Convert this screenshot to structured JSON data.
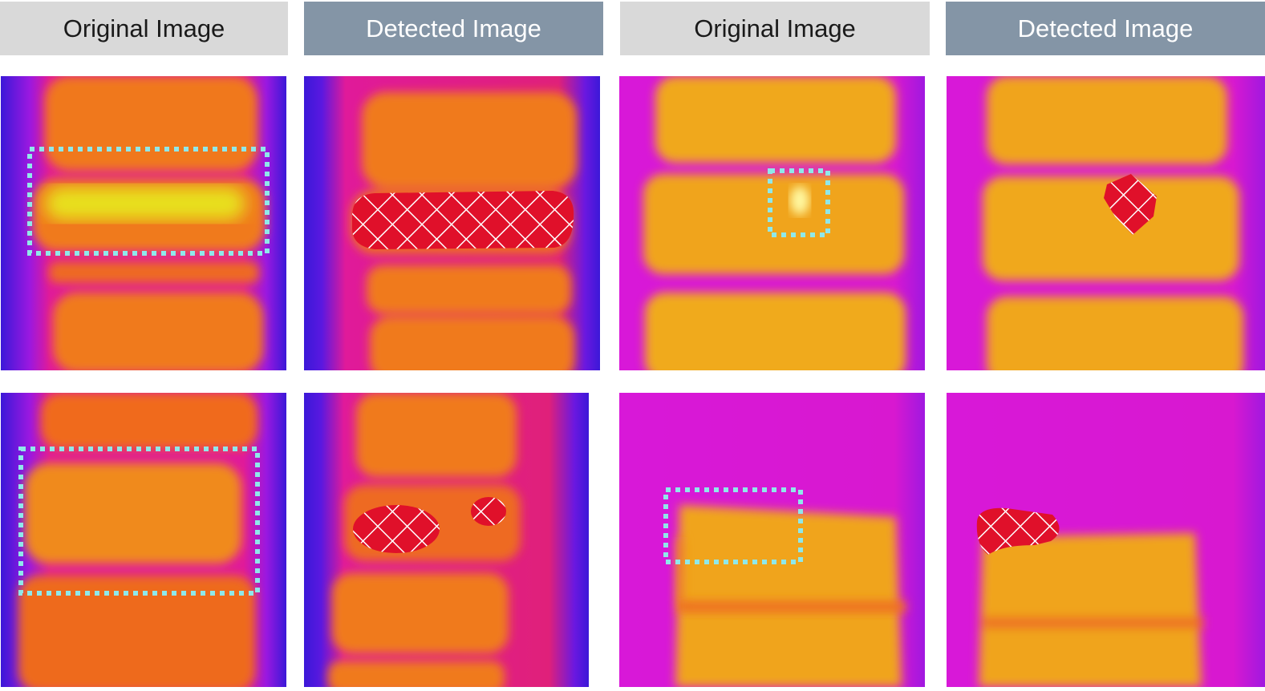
{
  "headers": {
    "col1": "Original Image",
    "col2": "Detected Image",
    "col3": "Original Image",
    "col4": "Detected Image"
  },
  "palette": {
    "header_original_bg": "#d9d9d9",
    "header_detected_bg": "#8495a6",
    "box_outline": "#8fe8ea",
    "hatch_fill": "#e0102a",
    "hatch_lines": "#ffffff"
  }
}
